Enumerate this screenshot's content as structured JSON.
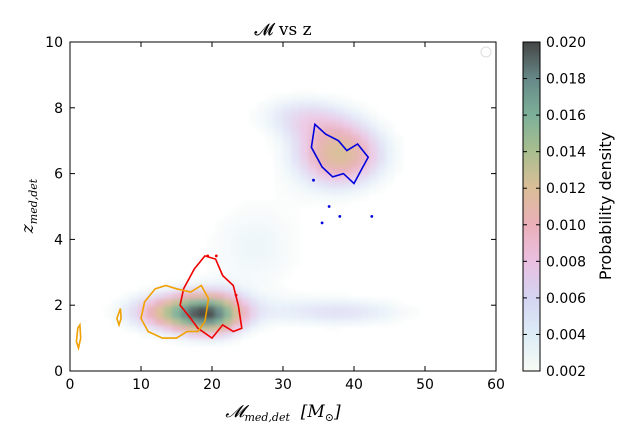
{
  "chart_data": {
    "type": "heatmap",
    "title": "𝓜 vs z",
    "xlabel": "𝓜",
    "xlabel_sub": "med,det",
    "xlabel_units": "[M",
    "xlabel_units_sub": "⊙",
    "xlabel_units_close": "]",
    "ylabel": "z",
    "ylabel_sub": "med,det",
    "xlim": [
      0,
      60
    ],
    "ylim": [
      0,
      10
    ],
    "x_ticks": [
      "0",
      "10",
      "20",
      "30",
      "40",
      "50",
      "60"
    ],
    "y_ticks": [
      "0",
      "2",
      "4",
      "6",
      "8",
      "10"
    ],
    "colorbar": {
      "label": "Probability density",
      "range": [
        0.002,
        0.02
      ],
      "ticks": [
        "0.002",
        "0.004",
        "0.006",
        "0.008",
        "0.010",
        "0.012",
        "0.014",
        "0.016",
        "0.018",
        "0.020"
      ],
      "colormap": [
        "#f7fbf4",
        "#d9eaf5",
        "#cfcff0",
        "#e7b8dd",
        "#e8a7b2",
        "#d6b68c",
        "#9fb782",
        "#6ea78e",
        "#557b7a",
        "#303030"
      ]
    },
    "density_blobs": [
      {
        "name": "low-mass-low-z",
        "x": 15,
        "y": 1.8,
        "sx": 5.5,
        "sy": 0.45,
        "peak": 0.012
      },
      {
        "name": "mid-mass-low-z",
        "x": 20,
        "y": 1.7,
        "sx": 3.5,
        "sy": 0.5,
        "peak": 0.011
      },
      {
        "name": "high-mass-low-z-tail",
        "x": 38,
        "y": 1.8,
        "sx": 8,
        "sy": 0.35,
        "peak": 0.006
      },
      {
        "name": "high-mass-high-z",
        "x": 38,
        "y": 6.6,
        "sx": 5,
        "sy": 0.8,
        "peak": 0.012
      },
      {
        "name": "bridge",
        "x": 26,
        "y": 3.8,
        "sx": 6,
        "sy": 1.2,
        "peak": 0.004
      },
      {
        "name": "upper-ridge",
        "x": 32,
        "y": 7.8,
        "sx": 5,
        "sy": 0.5,
        "peak": 0.005
      }
    ],
    "contours": [
      {
        "name": "blue",
        "color": "#0000dd",
        "points": [
          [
            34.5,
            7.5
          ],
          [
            36,
            7.2
          ],
          [
            37.8,
            7.0
          ],
          [
            39,
            6.7
          ],
          [
            40.5,
            6.9
          ],
          [
            42,
            6.5
          ],
          [
            41,
            6.1
          ],
          [
            40,
            5.7
          ],
          [
            38.5,
            6.0
          ],
          [
            37,
            5.9
          ],
          [
            35.5,
            6.2
          ],
          [
            34,
            6.8
          ],
          [
            34.5,
            7.5
          ]
        ],
        "markers": [
          [
            36.5,
            5.0
          ],
          [
            38,
            4.7
          ],
          [
            42.5,
            4.7
          ],
          [
            35.5,
            4.5
          ],
          [
            34.3,
            5.8
          ]
        ]
      },
      {
        "name": "red",
        "color": "#ee0000",
        "points": [
          [
            16,
            2.5
          ],
          [
            17.5,
            3.1
          ],
          [
            19,
            3.5
          ],
          [
            20.5,
            3.4
          ],
          [
            21.5,
            2.9
          ],
          [
            23,
            2.6
          ],
          [
            23.7,
            2.0
          ],
          [
            24.2,
            1.3
          ],
          [
            23,
            1.2
          ],
          [
            21.5,
            1.4
          ],
          [
            20,
            1.0
          ],
          [
            18,
            1.3
          ],
          [
            17,
            1.6
          ],
          [
            15.5,
            2.0
          ],
          [
            16,
            2.5
          ]
        ],
        "markers": [
          [
            19.4,
            3.5
          ],
          [
            20.6,
            3.5
          ],
          [
            23.4,
            2.3
          ]
        ]
      },
      {
        "name": "orange",
        "color": "#f0a000",
        "points": [
          [
            10.5,
            2.1
          ],
          [
            12,
            2.5
          ],
          [
            13.5,
            2.6
          ],
          [
            15,
            2.5
          ],
          [
            17,
            2.4
          ],
          [
            18.5,
            2.6
          ],
          [
            19.5,
            2.2
          ],
          [
            19,
            1.5
          ],
          [
            18,
            1.2
          ],
          [
            16.5,
            1.2
          ],
          [
            15,
            1.0
          ],
          [
            13,
            1.0
          ],
          [
            11,
            1.2
          ],
          [
            10,
            1.6
          ],
          [
            10.5,
            2.1
          ]
        ],
        "extra": [
          [
            [
              1.2,
              0.7
            ],
            [
              1.5,
              1.0
            ],
            [
              1.4,
              1.4
            ],
            [
              1.1,
              1.3
            ],
            [
              0.9,
              0.9
            ],
            [
              1.2,
              0.7
            ]
          ],
          [
            [
              6.6,
              1.6
            ],
            [
              7.1,
              1.9
            ],
            [
              7.2,
              1.6
            ],
            [
              6.9,
              1.4
            ],
            [
              6.6,
              1.6
            ]
          ]
        ]
      }
    ]
  }
}
